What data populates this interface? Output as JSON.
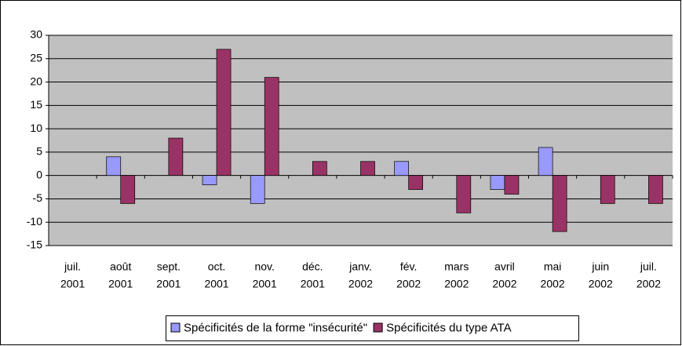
{
  "chart_data": {
    "type": "bar",
    "categories": [
      [
        "juil.",
        "2001"
      ],
      [
        "août",
        "2001"
      ],
      [
        "sept.",
        "2001"
      ],
      [
        "oct.",
        "2001"
      ],
      [
        "nov.",
        "2001"
      ],
      [
        "déc.",
        "2001"
      ],
      [
        "janv.",
        "2002"
      ],
      [
        "fév.",
        "2002"
      ],
      [
        "mars",
        "2002"
      ],
      [
        "avril",
        "2002"
      ],
      [
        "mai",
        "2002"
      ],
      [
        "juin",
        "2002"
      ],
      [
        "juil.",
        "2002"
      ]
    ],
    "series": [
      {
        "name": "Spécificités de la forme \"insécurité\"",
        "color": "#9999ff",
        "values": [
          0,
          4,
          0,
          -2,
          -6,
          0,
          0,
          3,
          0,
          -3,
          6,
          0,
          0
        ]
      },
      {
        "name": "Spécificités du type ATA",
        "color": "#993366",
        "values": [
          0,
          -6,
          8,
          27,
          21,
          3,
          3,
          -3,
          -8,
          -4,
          -12,
          -6,
          -6
        ]
      }
    ],
    "ylim": [
      -15,
      30
    ],
    "yticks": [
      -15,
      -10,
      -5,
      0,
      5,
      10,
      15,
      20,
      25,
      30
    ],
    "grid": true,
    "legend": "bottom"
  }
}
